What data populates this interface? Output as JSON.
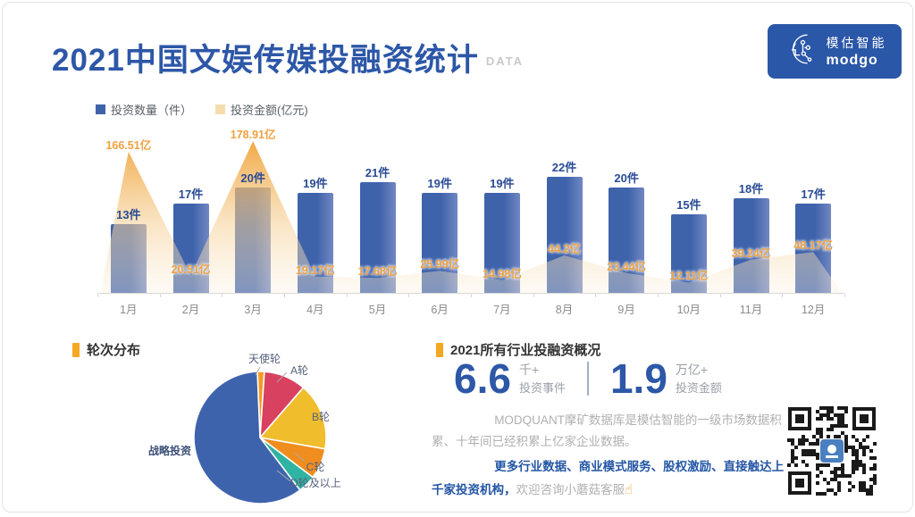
{
  "header": {
    "title": "2021中国文娱传媒投融资统计",
    "suffix": "DATA",
    "logo": {
      "brand_cn": "模估智能",
      "brand_en": "modgo"
    }
  },
  "colors": {
    "primary_blue": "#2d57a7",
    "bar_blue": "#3f63ab",
    "accent_orange": "#f0a13c",
    "legend_amount_swatch": "#f5ddb0",
    "logo_bg": "#2b57a8"
  },
  "chart_data": [
    {
      "id": "monthly_combo",
      "type": "bar",
      "title": "",
      "categories": [
        "1月",
        "2月",
        "3月",
        "4月",
        "5月",
        "6月",
        "7月",
        "8月",
        "9月",
        "10月",
        "11月",
        "12月"
      ],
      "series": [
        {
          "name": "投资数量（件）",
          "type": "bar",
          "unit": "件",
          "color": "#3f63ab",
          "values": [
            13,
            17,
            20,
            19,
            21,
            19,
            19,
            22,
            20,
            15,
            18,
            17
          ],
          "labels": [
            "13件",
            "17件",
            "20件",
            "19件",
            "21件",
            "19件",
            "19件",
            "22件",
            "20件",
            "15件",
            "18件",
            "17件"
          ]
        },
        {
          "name": "投资金额(亿元)",
          "type": "area",
          "unit": "亿",
          "color": "#f0a13c",
          "values": [
            166.51,
            20.51,
            178.91,
            19.17,
            17.68,
            25.99,
            14.98,
            44.2,
            23.44,
            12.11,
            39.24,
            48.17
          ],
          "labels": [
            "166.51亿",
            "20.51亿",
            "178.91亿",
            "19.17亿",
            "17.68亿",
            "25.99亿",
            "14.98亿",
            "44.2亿",
            "23.44亿",
            "12.11亿",
            "39.24亿",
            "48.17亿"
          ]
        }
      ],
      "legend_position": "top-left",
      "grid": false,
      "ylim_bar": [
        0,
        22
      ],
      "ylim_area": [
        0,
        178.91
      ]
    },
    {
      "id": "round_distribution",
      "type": "pie",
      "title": "轮次分布",
      "slices": [
        {
          "key": "angel",
          "label": "天使轮",
          "percent": 1.7,
          "color": "#f59b22"
        },
        {
          "key": "series-a",
          "label": "A轮",
          "percent": 10.3,
          "color": "#d8415f"
        },
        {
          "key": "series-b",
          "label": "B轮",
          "percent": 16.4,
          "color": "#f0bd2c"
        },
        {
          "key": "series-c",
          "label": "C轮",
          "percent": 7.5,
          "color": "#ef8d1f"
        },
        {
          "key": "series-d-plus",
          "label": "D轮及以上",
          "percent": 4.4,
          "color": "#2fb3a2"
        },
        {
          "key": "strategic",
          "label": "战略投资",
          "percent": 59.7,
          "color": "#3e63ad"
        }
      ],
      "legend_position": "outside-labels"
    }
  ],
  "summary_section": {
    "title": "2021所有行业投融资概况",
    "stats": [
      {
        "value": "6.6",
        "unit": "千+",
        "label": "投资事件"
      },
      {
        "value": "1.9",
        "unit": "万亿+",
        "label": "投资金额"
      }
    ],
    "paragraph_gray": "MODQUANT摩矿数据库是模估智能的一级市场数据积累、十年间已经积累上亿家企业数据。",
    "highlight_blue": "更多行业数据、商业模式服务、股权激励、直接触达上千家投资机构，",
    "highlight_gray": "欢迎咨询小蘑菇客服",
    "pointer_icon": "☝"
  }
}
